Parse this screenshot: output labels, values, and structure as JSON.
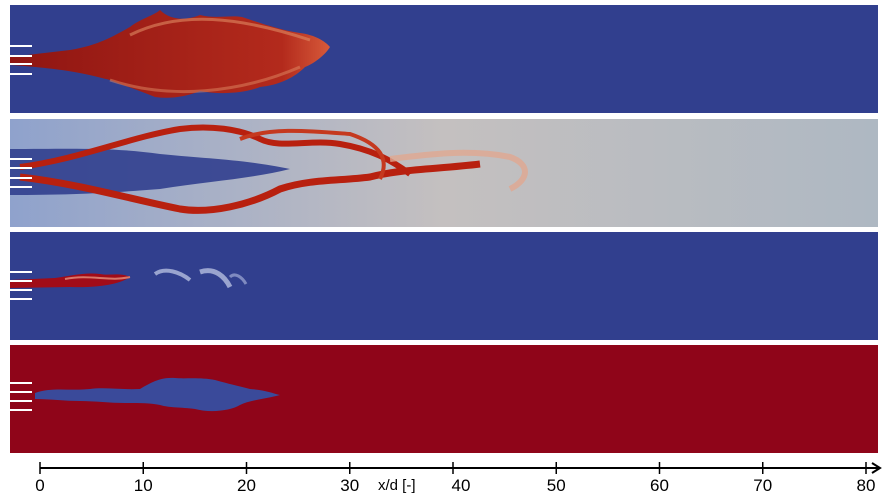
{
  "figure": {
    "panels": [
      {
        "name": "panel-1",
        "background": "#313F8E",
        "structure": "#A81A0C"
      },
      {
        "name": "panel-2",
        "background": "#AFB8C2",
        "structure": "#B3200F"
      },
      {
        "name": "panel-3",
        "background": "#313F8E",
        "structure": "#A50A16"
      },
      {
        "name": "panel-4",
        "background": "#8F0519",
        "structure": "#3A4A9A"
      }
    ]
  },
  "axis": {
    "label": "x/d [-]",
    "ticks": [
      "0",
      "10",
      "20",
      "30",
      "40",
      "50",
      "60",
      "70",
      "80"
    ],
    "range": [
      0,
      80
    ]
  }
}
